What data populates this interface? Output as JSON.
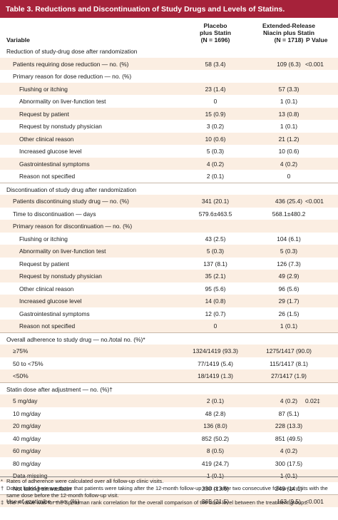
{
  "title": "Table 3. Reductions and Discontinuation of Study Drugs and Levels of Statins.",
  "headers": {
    "variable": "Variable",
    "placebo": [
      "Placebo",
      "plus Statin",
      "(N = 1696)"
    ],
    "niacin": [
      "Extended-Release",
      "Niacin plus Statin",
      "(N = 1718)"
    ],
    "pvalue": "P Value"
  },
  "rows": [
    {
      "label": "Reduction of study-drug dose after randomization",
      "level": 0,
      "placebo": "",
      "niacin": "",
      "p": "",
      "shaded": false,
      "sep": false
    },
    {
      "label": "Patients requiring dose reduction — no. (%)",
      "level": 1,
      "placebo": "58 (3.4)",
      "niacin": "109 (6.3)",
      "p": "<0.001",
      "shaded": true,
      "sep": false
    },
    {
      "label": "Primary reason for dose reduction — no. (%)",
      "level": 1,
      "placebo": "",
      "niacin": "",
      "p": "",
      "shaded": false,
      "sep": false
    },
    {
      "label": "Flushing or itching",
      "level": 2,
      "placebo": "23 (1.4)",
      "niacin": "57 (3.3)",
      "p": "",
      "shaded": true,
      "sep": false
    },
    {
      "label": "Abnormality on liver-function test",
      "level": 2,
      "placebo": "0",
      "niacin": "1 (0.1)",
      "p": "",
      "shaded": false,
      "sep": false
    },
    {
      "label": "Request by patient",
      "level": 2,
      "placebo": "15 (0.9)",
      "niacin": "13 (0.8)",
      "p": "",
      "shaded": true,
      "sep": false
    },
    {
      "label": "Request by nonstudy physician",
      "level": 2,
      "placebo": "3 (0.2)",
      "niacin": "1 (0.1)",
      "p": "",
      "shaded": false,
      "sep": false
    },
    {
      "label": "Other clinical reason",
      "level": 2,
      "placebo": "10 (0.6)",
      "niacin": "21 (1.2)",
      "p": "",
      "shaded": true,
      "sep": false
    },
    {
      "label": "Increased glucose level",
      "level": 2,
      "placebo": "5 (0.3)",
      "niacin": "10 (0.6)",
      "p": "",
      "shaded": false,
      "sep": false
    },
    {
      "label": "Gastrointestinal symptoms",
      "level": 2,
      "placebo": "4 (0.2)",
      "niacin": "4 (0.2)",
      "p": "",
      "shaded": true,
      "sep": false
    },
    {
      "label": "Reason not specified",
      "level": 2,
      "placebo": "2 (0.1)",
      "niacin": "0",
      "p": "",
      "shaded": false,
      "sep": false
    },
    {
      "label": "Discontinuation of study drug after randomization",
      "level": 0,
      "placebo": "",
      "niacin": "",
      "p": "",
      "shaded": false,
      "sep": true
    },
    {
      "label": "Patients discontinuing study drug — no. (%)",
      "level": 1,
      "placebo": "341 (20.1)",
      "niacin": "436 (25.4)",
      "p": "<0.001",
      "shaded": true,
      "sep": false
    },
    {
      "label": "Time to discontinuation — days",
      "level": 1,
      "placebo": "579.6±463.5",
      "niacin": "568.1±480.2",
      "p": "",
      "shaded": false,
      "sep": false
    },
    {
      "label": "Primary reason for discontinuation — no. (%)",
      "level": 1,
      "placebo": "",
      "niacin": "",
      "p": "",
      "shaded": true,
      "sep": false
    },
    {
      "label": "Flushing or itching",
      "level": 2,
      "placebo": "43 (2.5)",
      "niacin": "104 (6.1)",
      "p": "",
      "shaded": false,
      "sep": false
    },
    {
      "label": "Abnormality on liver-function test",
      "level": 2,
      "placebo": "5 (0.3)",
      "niacin": "5 (0.3)",
      "p": "",
      "shaded": true,
      "sep": false
    },
    {
      "label": "Request by patient",
      "level": 2,
      "placebo": "137 (8.1)",
      "niacin": "126 (7.3)",
      "p": "",
      "shaded": false,
      "sep": false
    },
    {
      "label": "Request by nonstudy physician",
      "level": 2,
      "placebo": "35 (2.1)",
      "niacin": "49 (2.9)",
      "p": "",
      "shaded": true,
      "sep": false
    },
    {
      "label": "Other clinical reason",
      "level": 2,
      "placebo": "95 (5.6)",
      "niacin": "96 (5.6)",
      "p": "",
      "shaded": false,
      "sep": false
    },
    {
      "label": "Increased glucose level",
      "level": 2,
      "placebo": "14 (0.8)",
      "niacin": "29 (1.7)",
      "p": "",
      "shaded": true,
      "sep": false
    },
    {
      "label": "Gastrointestinal symptoms",
      "level": 2,
      "placebo": "12 (0.7)",
      "niacin": "26 (1.5)",
      "p": "",
      "shaded": false,
      "sep": false
    },
    {
      "label": "Reason not specified",
      "level": 2,
      "placebo": "0",
      "niacin": "1 (0.1)",
      "p": "",
      "shaded": true,
      "sep": false
    },
    {
      "label": "Overall adherence to study drug — no./total no. (%)*",
      "level": 0,
      "placebo": "",
      "niacin": "",
      "p": "",
      "shaded": false,
      "sep": true
    },
    {
      "label": "≥75%",
      "level": 1,
      "placebo": "1324/1419 (93.3)",
      "niacin": "1275/1417 (90.0)",
      "p": "",
      "shaded": true,
      "sep": false
    },
    {
      "label": "50 to <75%",
      "level": 1,
      "placebo": "77/1419 (5.4)",
      "niacin": "115/1417 (8.1)",
      "p": "",
      "shaded": false,
      "sep": false
    },
    {
      "label": "<50%",
      "level": 1,
      "placebo": "18/1419 (1.3)",
      "niacin": "27/1417 (1.9)",
      "p": "",
      "shaded": true,
      "sep": false
    },
    {
      "label": "Statin dose after adjustment — no. (%)†",
      "level": 0,
      "placebo": "",
      "niacin": "",
      "p": "",
      "shaded": false,
      "sep": true
    },
    {
      "label": "5 mg/day",
      "level": 1,
      "placebo": "2 (0.1)",
      "niacin": "4 (0.2)",
      "p": "0.02‡",
      "shaded": true,
      "sep": false
    },
    {
      "label": "10 mg/day",
      "level": 1,
      "placebo": "48 (2.8)",
      "niacin": "87 (5.1)",
      "p": "",
      "shaded": false,
      "sep": false
    },
    {
      "label": "20 mg/day",
      "level": 1,
      "placebo": "136 (8.0)",
      "niacin": "228 (13.3)",
      "p": "",
      "shaded": true,
      "sep": false
    },
    {
      "label": "40 mg/day",
      "level": 1,
      "placebo": "852 (50.2)",
      "niacin": "851 (49.5)",
      "p": "",
      "shaded": false,
      "sep": false
    },
    {
      "label": "60 mg/day",
      "level": 1,
      "placebo": "8 (0.5)",
      "niacin": "4 (0.2)",
      "p": "",
      "shaded": true,
      "sep": false
    },
    {
      "label": "80 mg/day",
      "level": 1,
      "placebo": "419 (24.7)",
      "niacin": "300 (17.5)",
      "p": "",
      "shaded": false,
      "sep": false
    },
    {
      "label": "Data missing",
      "level": 1,
      "placebo": "1 (0.1)",
      "niacin": "1 (0.1)",
      "p": "",
      "shaded": true,
      "sep": false
    },
    {
      "label": "Not taking simvastatin",
      "level": 1,
      "placebo": "230 (13.6)",
      "niacin": "243 (14.1)",
      "p": "",
      "shaded": false,
      "sep": false
    },
    {
      "label": "Use of ezetimibe — no. (%)",
      "level": 0,
      "placebo": "365 (21.5)",
      "niacin": "163 (9.5)",
      "p": "<0.001",
      "shaded": true,
      "sep": true
    }
  ],
  "footnotes": [
    {
      "symbol": "*",
      "text": "Rates of adherence were calculated over all follow-up clinic visits."
    },
    {
      "symbol": "†",
      "text": "Doses listed here are those that patients were taking after the 12-month follow-up visit or after two consecutive follow-up visits with the same dose before the 12-month follow-up visit."
    },
    {
      "symbol": "‡",
      "text": "The P value was for the Spearman rank correlation for the overall comparison of the dose level between the treatment groups."
    }
  ],
  "colors": {
    "title_bar": "#a6223a",
    "shade": "#fbeee2"
  }
}
